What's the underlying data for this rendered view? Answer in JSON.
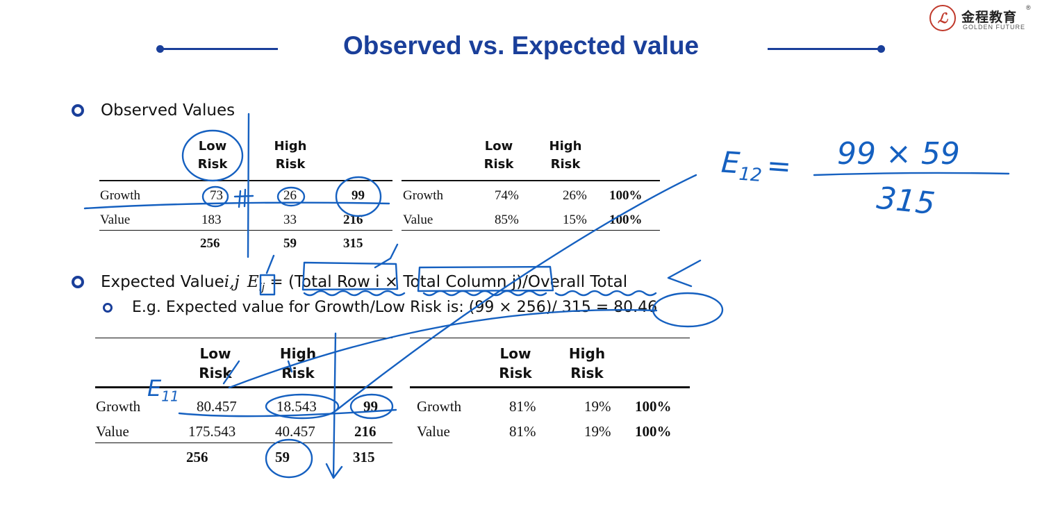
{
  "logo": {
    "seal": "ℒ",
    "cn": "金程教育",
    "en": "GOLDEN FUTURE",
    "registered": "®"
  },
  "title": "Observed vs. Expected value",
  "bullets": {
    "observed": "Observed Values",
    "expected": "Expected Value",
    "expected_ij": "i,j",
    "formula_E": "E",
    "formula_ij": "ij",
    "formula_rest": " = (Total Row i × Total Column j)/Overall Total",
    "example": "E.g. Expected value for Growth/Low Risk is: (99 × 256)/ 315 = 80.46"
  },
  "observed_table": {
    "headers": [
      [
        "Low",
        "Risk"
      ],
      [
        "High",
        "Risk"
      ]
    ],
    "rows": [
      {
        "label": "Growth",
        "low": "73",
        "high": "26",
        "total": "99"
      },
      {
        "label": "Value",
        "low": "183",
        "high": "33",
        "total": "216"
      }
    ],
    "totals": {
      "low": "256",
      "high": "59",
      "total": "315"
    }
  },
  "observed_pct_table": {
    "headers": [
      [
        "Low",
        "Risk"
      ],
      [
        "High",
        "Risk"
      ]
    ],
    "rows": [
      {
        "label": "Growth",
        "low": "74%",
        "high": "26%",
        "total": "100%"
      },
      {
        "label": "Value",
        "low": "85%",
        "high": "15%",
        "total": "100%"
      }
    ]
  },
  "expected_table": {
    "headers": [
      [
        "Low",
        "Risk"
      ],
      [
        "High",
        "Risk"
      ]
    ],
    "rows": [
      {
        "label": "Growth",
        "low": "80.457",
        "high": "18.543",
        "total": "99"
      },
      {
        "label": "Value",
        "low": "175.543",
        "high": "40.457",
        "total": "216"
      }
    ],
    "totals": {
      "low": "256",
      "high": "59",
      "total": "315"
    }
  },
  "expected_pct_table": {
    "headers": [
      [
        "Low",
        "Risk"
      ],
      [
        "High",
        "Risk"
      ]
    ],
    "rows": [
      {
        "label": "Growth",
        "low": "81%",
        "high": "19%",
        "total": "100%"
      },
      {
        "label": "Value",
        "low": "81%",
        "high": "19%",
        "total": "100%"
      }
    ]
  },
  "handwriting": {
    "e12_label": "E",
    "e12_sub": "12",
    "e12_eq": "=",
    "numerator": "99 × 59",
    "denominator": "315",
    "e11_label": "E",
    "e11_sub": "11"
  },
  "colors": {
    "brand_blue": "#1a3f9a",
    "ink_blue": "#1560c0",
    "logo_red": "#c0392b"
  }
}
